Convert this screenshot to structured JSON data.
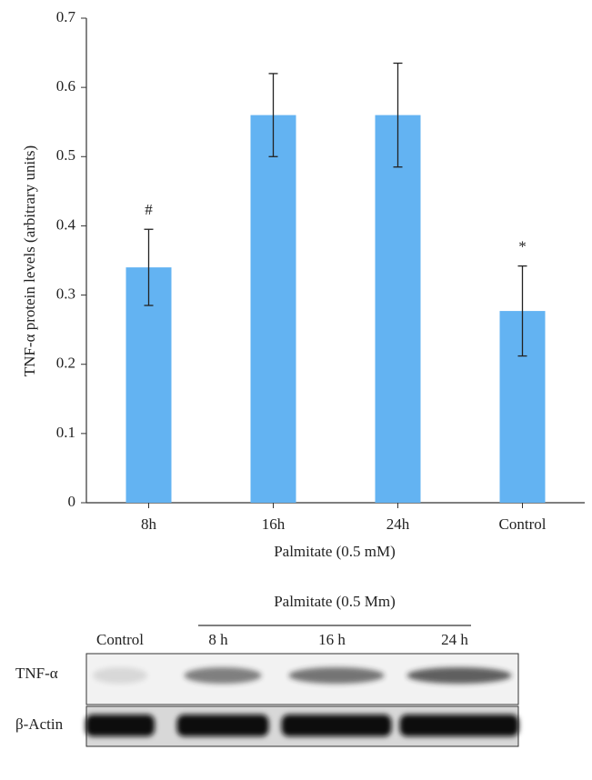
{
  "chart_data": {
    "type": "bar",
    "y_label": "TNF-α protein levels (arbitrary units)",
    "x_label": "Palmitate (0.5 mM)",
    "categories": [
      "8h",
      "16h",
      "24h",
      "Control"
    ],
    "values": [
      0.34,
      0.56,
      0.56,
      0.277
    ],
    "errors": [
      0.055,
      0.06,
      0.075,
      0.065
    ],
    "color": "#63b3f2",
    "ylim": [
      0,
      0.7
    ],
    "yticks": [
      0,
      0.1,
      0.2,
      0.3,
      0.4,
      0.5,
      0.6,
      0.7
    ],
    "annotations": [
      {
        "text": "#",
        "category": "8h"
      },
      {
        "text": "*",
        "category": "Control"
      }
    ]
  },
  "blot": {
    "group_label": "Palmitate (0.5 Mm)",
    "lanes": [
      "Control",
      "8 h",
      "16 h",
      "24 h"
    ],
    "rows": [
      "TNF-α",
      "β-Actin"
    ]
  }
}
